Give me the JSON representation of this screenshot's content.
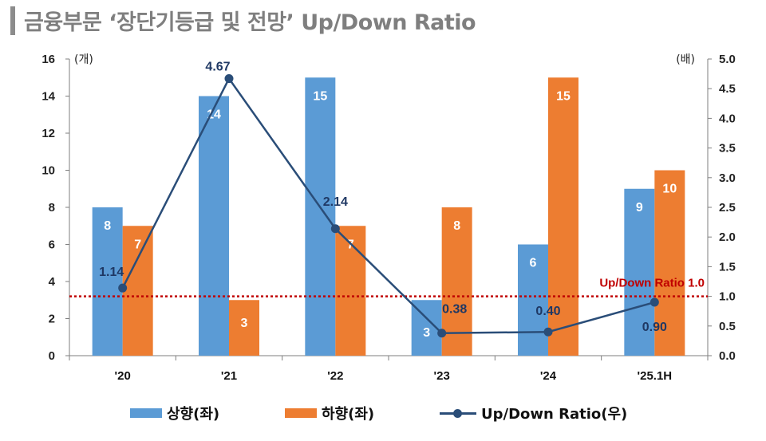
{
  "title": "금융부문 ‘장단기등급 및 전망’ Up/Down Ratio",
  "chart_data": {
    "type": "bar+line",
    "categories": [
      "'20",
      "'21",
      "'22",
      "'23",
      "'24",
      "'25.1H"
    ],
    "series": [
      {
        "name": "상향(좌)",
        "axis": "left",
        "type": "bar",
        "color": "#5b9bd5",
        "values": [
          8,
          14,
          15,
          3,
          6,
          9
        ]
      },
      {
        "name": "하향(좌)",
        "axis": "left",
        "type": "bar",
        "color": "#ed7d31",
        "values": [
          7,
          3,
          7,
          8,
          15,
          10
        ]
      },
      {
        "name": "Up/Down Ratio(우)",
        "axis": "right",
        "type": "line",
        "color": "#2a4d78",
        "values": [
          1.14,
          4.67,
          2.14,
          0.38,
          0.4,
          0.9
        ],
        "labels": [
          "1.14",
          "4.67",
          "2.14",
          "0.38",
          "0.40",
          "0.90"
        ]
      }
    ],
    "left_axis": {
      "unit": "(개)",
      "min": 0,
      "max": 16,
      "ticks": [
        "0",
        "2",
        "4",
        "6",
        "8",
        "10",
        "12",
        "14",
        "16"
      ]
    },
    "right_axis": {
      "unit": "(배)",
      "min": 0,
      "max": 5,
      "ticks": [
        "0.0",
        "0.5",
        "1.0",
        "1.5",
        "2.0",
        "2.5",
        "3.0",
        "3.5",
        "4.0",
        "4.5",
        "5.0"
      ]
    },
    "reference_line": {
      "value": 1.0,
      "axis": "right",
      "label": "Up/Down Ratio 1.0",
      "color": "#c00000"
    }
  }
}
